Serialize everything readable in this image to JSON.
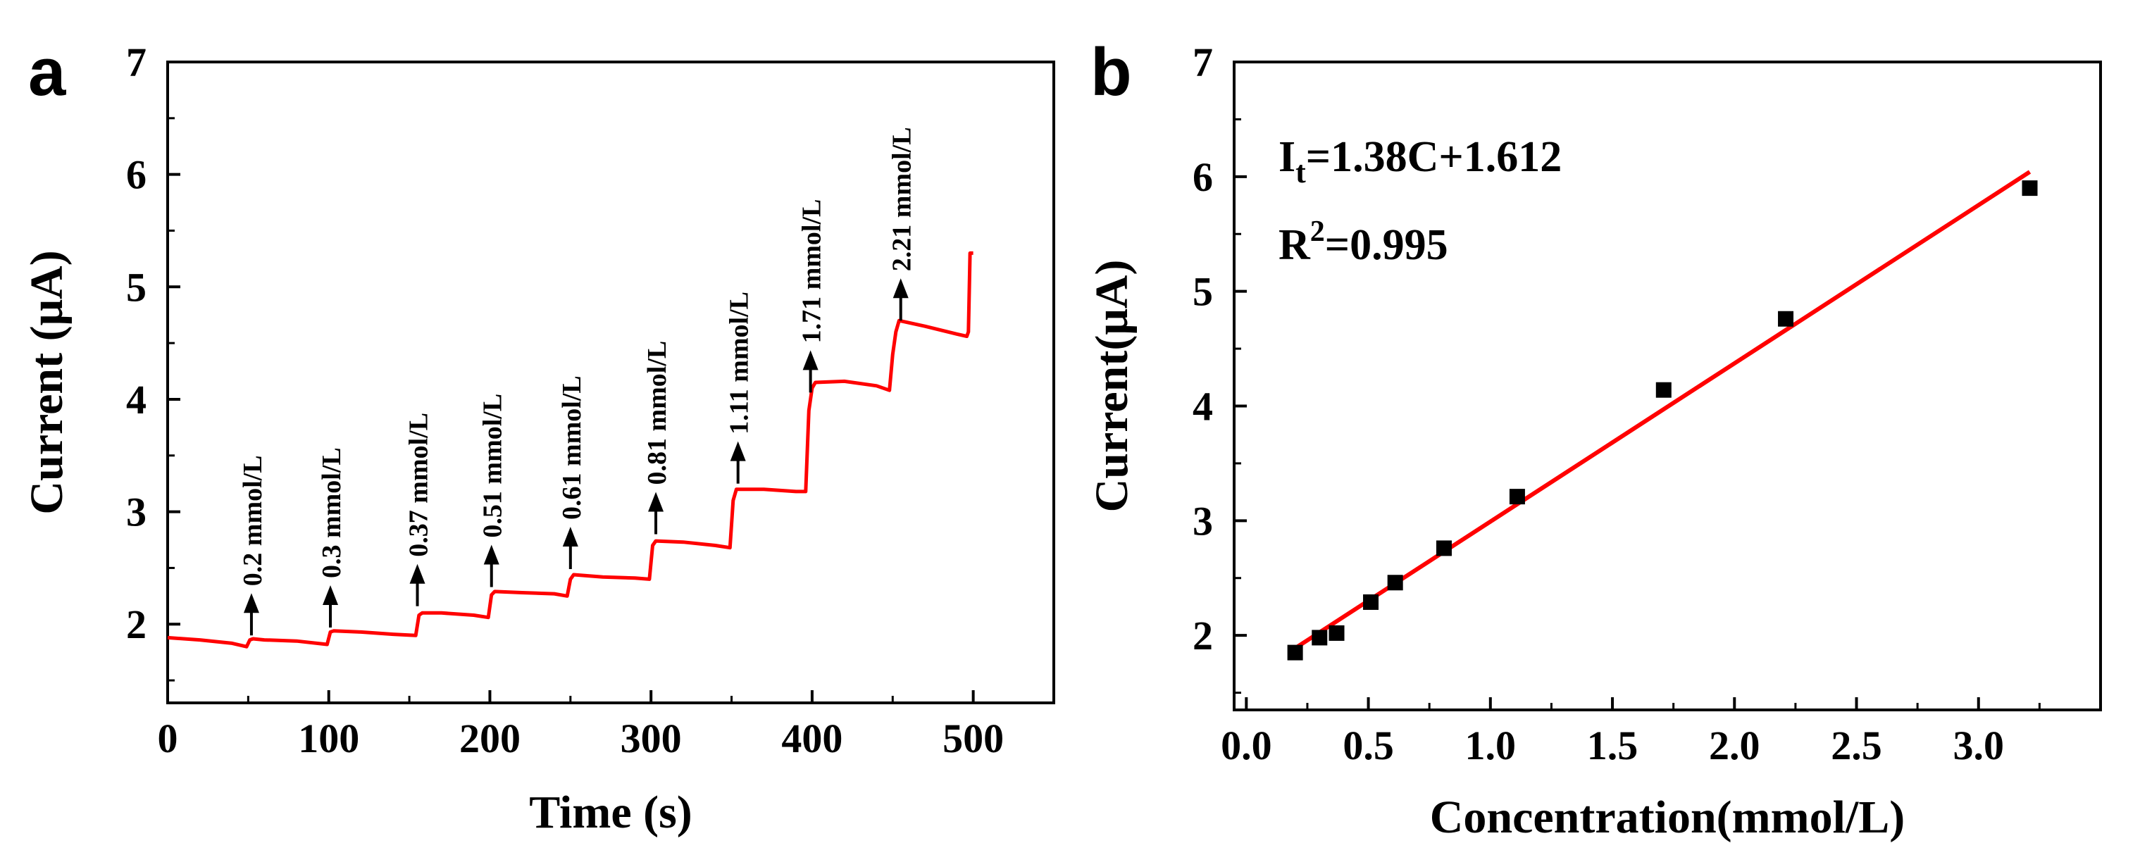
{
  "chart_data": [
    {
      "panel": "a",
      "type": "line",
      "xlabel": "Time (s)",
      "ylabel": "Current (μA)",
      "xlim": [
        0,
        550
      ],
      "ylim": [
        1.3,
        7
      ],
      "xticks": [
        0,
        100,
        200,
        300,
        400,
        500
      ],
      "yticks": [
        2,
        3,
        4,
        5,
        6,
        7
      ],
      "color": "#ff0000",
      "series": [
        {
          "x": [
            0,
            20,
            40,
            49,
            51,
            53,
            60,
            80,
            99,
            101,
            103,
            120,
            140,
            154,
            156,
            158,
            170,
            190,
            199,
            201,
            203,
            220,
            240,
            248,
            250,
            252,
            270,
            290,
            299,
            301,
            303,
            320,
            340,
            349,
            351,
            353,
            370,
            390,
            396,
            398,
            400,
            402,
            420,
            440,
            448,
            450,
            452,
            454,
            470,
            490,
            496,
            497,
            498,
            500
          ],
          "y": [
            1.88,
            1.86,
            1.83,
            1.8,
            1.86,
            1.87,
            1.86,
            1.85,
            1.82,
            1.93,
            1.94,
            1.93,
            1.91,
            1.9,
            2.08,
            2.1,
            2.1,
            2.08,
            2.06,
            2.26,
            2.29,
            2.28,
            2.27,
            2.25,
            2.4,
            2.44,
            2.42,
            2.41,
            2.4,
            2.7,
            2.74,
            2.73,
            2.7,
            2.68,
            3.1,
            3.2,
            3.2,
            3.18,
            3.18,
            3.9,
            4.1,
            4.15,
            4.16,
            4.12,
            4.08,
            4.4,
            4.6,
            4.7,
            4.65,
            4.58,
            4.56,
            4.6,
            5.3,
            5.3
          ]
        }
      ],
      "annotations": [
        {
          "label": "0.2 mmol/L",
          "x": 52,
          "y": 1.9
        },
        {
          "label": "0.3 mmol/L",
          "x": 101,
          "y": 1.97
        },
        {
          "label": "0.37 mmol/L",
          "x": 155,
          "y": 2.16
        },
        {
          "label": "0.51 mmol/L",
          "x": 201,
          "y": 2.33
        },
        {
          "label": "0.61 mmol/L",
          "x": 250,
          "y": 2.49
        },
        {
          "label": "0.81 mmol/L",
          "x": 303,
          "y": 2.8
        },
        {
          "label": "1.11 mmol/L",
          "x": 354,
          "y": 3.25
        },
        {
          "label": "1.71 mmol/L",
          "x": 399,
          "y": 4.06
        },
        {
          "label": "2.21 mmol/L",
          "x": 455,
          "y": 4.7
        }
      ]
    },
    {
      "panel": "b",
      "type": "scatter",
      "xlabel": "Concentration(mmol/L)",
      "ylabel": "Current(μA)",
      "xlim": [
        -0.05,
        3.5
      ],
      "ylim": [
        1.35,
        7
      ],
      "xticks": [
        "0.0",
        "0.5",
        "1.0",
        "1.5",
        "2.0",
        "2.5",
        "3.0"
      ],
      "yticks": [
        2,
        3,
        4,
        5,
        6,
        7
      ],
      "points": {
        "x": [
          0.2,
          0.3,
          0.37,
          0.51,
          0.61,
          0.81,
          1.11,
          1.71,
          2.21,
          3.21
        ],
        "y": [
          1.85,
          1.98,
          2.02,
          2.29,
          2.46,
          2.76,
          3.21,
          4.14,
          4.76,
          5.9
        ]
      },
      "fit": {
        "slope": 1.38,
        "intercept": 1.612,
        "x_range": [
          0.2,
          3.21
        ],
        "color": "#ff0000",
        "equation_prefix": "I",
        "equation_sub": "t",
        "equation_rest": "=1.38C+1.612",
        "r2_prefix": "R",
        "r2_sup": "2",
        "r2_rest": "=0.995"
      }
    }
  ]
}
